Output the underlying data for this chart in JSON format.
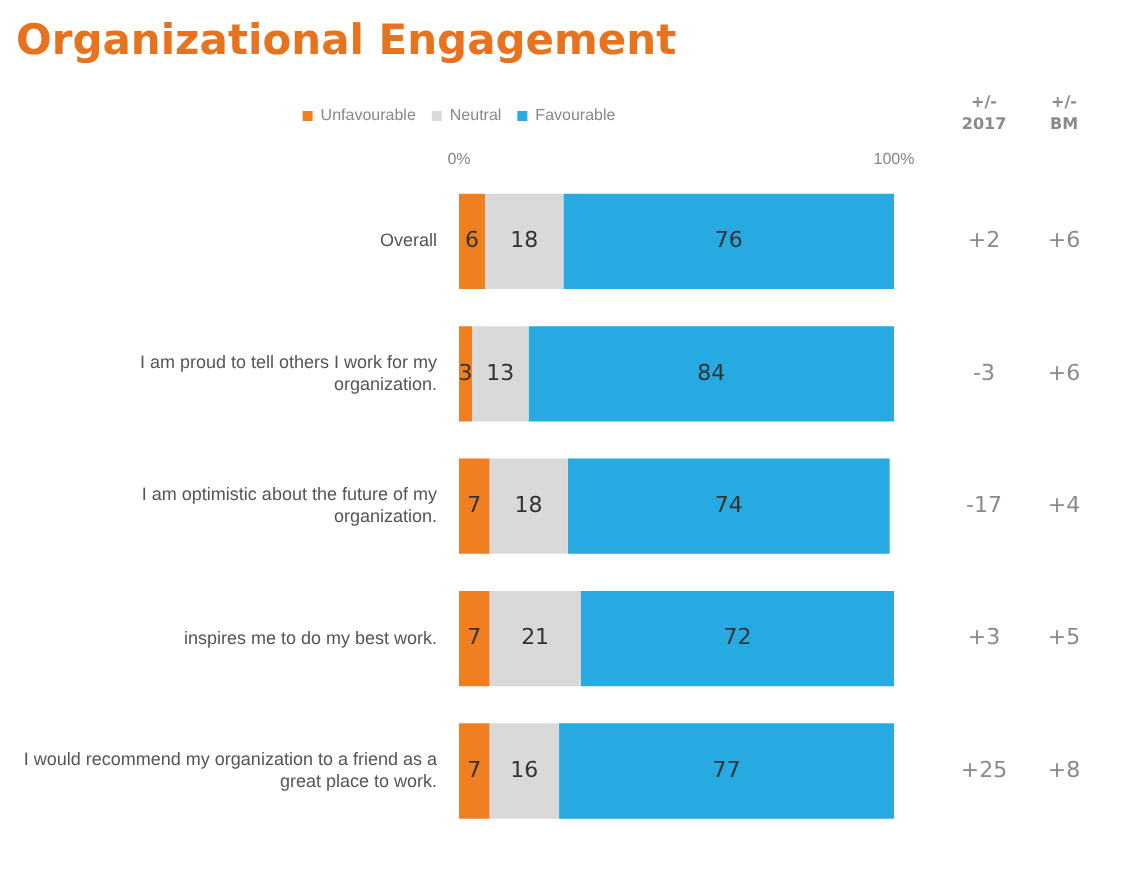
{
  "chart_data": {
    "type": "bar",
    "title": "Organizational Engagement",
    "orientation": "horizontal",
    "stacked": true,
    "categories": [
      "Overall",
      "I am proud to tell others I work for my organization.",
      "I am optimistic about the future of my organization.",
      "inspires me to do my best work.",
      "I would recommend my organization to a friend as a great place to work."
    ],
    "series": [
      {
        "name": "Unfavourable",
        "color": "#f07f22",
        "values": [
          6,
          3,
          7,
          7,
          7
        ]
      },
      {
        "name": "Neutral",
        "color": "#d9d9d9",
        "values": [
          18,
          13,
          18,
          21,
          16
        ]
      },
      {
        "name": "Favourable",
        "color": "#27a9e1",
        "values": [
          76,
          84,
          74,
          72,
          77
        ]
      }
    ],
    "xlim": [
      0,
      100
    ],
    "xticks": [
      {
        "value": 0,
        "label": "0%"
      },
      {
        "value": 100,
        "label": "100%"
      }
    ],
    "data_labels": true,
    "legend": "top",
    "grid": false,
    "annotations": [
      "+/-\n2017",
      "+/-\nBM",
      "+2",
      "+6",
      "-3",
      "+6",
      "-17",
      "+4",
      "+3",
      "+5",
      "+25",
      "+8"
    ]
  }
}
